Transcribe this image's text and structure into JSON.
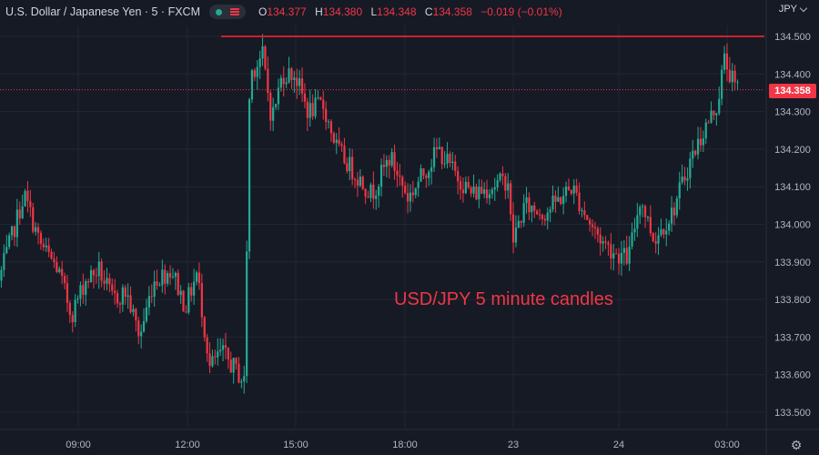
{
  "header": {
    "title": "U.S. Dollar / Japanese Yen · 5 · FXCM",
    "open_label": "O",
    "open": "134.377",
    "high_label": "H",
    "high": "134.380",
    "low_label": "L",
    "low": "134.348",
    "close_label": "C",
    "close": "134.358",
    "change": "−0.019 (−0.01%)",
    "currency": "JPY"
  },
  "annotation": "USD/JPY 5 minute candles",
  "last_price_label": "134.358",
  "colors": {
    "background": "#161a25",
    "up": "#22ab94",
    "down": "#f23645",
    "grid": "#232734",
    "resistance": "#d01f2a"
  },
  "chart_data": {
    "type": "candlestick",
    "title": "",
    "xlabel": "",
    "ylabel": "",
    "ylim": [
      133.48,
      134.545
    ],
    "y_ticks": [
      "134.500",
      "134.400",
      "134.300",
      "134.200",
      "134.100",
      "134.000",
      "133.900",
      "133.800",
      "133.700",
      "133.600",
      "133.500"
    ],
    "x_ticks": [
      "09:00",
      "12:00",
      "15:00",
      "18:00",
      "23",
      "24",
      "03:00"
    ],
    "grid": true,
    "resistance_level": 134.5,
    "last_price": 134.358,
    "series": [
      {
        "anchors": [
          {
            "pos": 0,
            "value": 133.85
          },
          {
            "pos": 10,
            "value": 133.93
          },
          {
            "pos": 28,
            "value": 134.08
          },
          {
            "pos": 45,
            "value": 133.95
          },
          {
            "pos": 65,
            "value": 133.88
          },
          {
            "pos": 80,
            "value": 133.76
          },
          {
            "pos": 95,
            "value": 133.85
          },
          {
            "pos": 110,
            "value": 133.88
          },
          {
            "pos": 125,
            "value": 133.8
          },
          {
            "pos": 140,
            "value": 133.82
          },
          {
            "pos": 155,
            "value": 133.7
          },
          {
            "pos": 170,
            "value": 133.85
          },
          {
            "pos": 190,
            "value": 133.88
          },
          {
            "pos": 205,
            "value": 133.78
          },
          {
            "pos": 218,
            "value": 133.87
          },
          {
            "pos": 232,
            "value": 133.62
          },
          {
            "pos": 245,
            "value": 133.66
          },
          {
            "pos": 258,
            "value": 133.62
          },
          {
            "pos": 270,
            "value": 133.58
          },
          {
            "pos": 276,
            "value": 134.4
          },
          {
            "pos": 290,
            "value": 134.45
          },
          {
            "pos": 300,
            "value": 134.28
          },
          {
            "pos": 312,
            "value": 134.4
          },
          {
            "pos": 325,
            "value": 134.4
          },
          {
            "pos": 340,
            "value": 134.3
          },
          {
            "pos": 356,
            "value": 134.32
          },
          {
            "pos": 372,
            "value": 134.2
          },
          {
            "pos": 390,
            "value": 134.14
          },
          {
            "pos": 410,
            "value": 134.08
          },
          {
            "pos": 430,
            "value": 134.18
          },
          {
            "pos": 450,
            "value": 134.07
          },
          {
            "pos": 468,
            "value": 134.14
          },
          {
            "pos": 483,
            "value": 134.2
          },
          {
            "pos": 500,
            "value": 134.14
          },
          {
            "pos": 520,
            "value": 134.08
          },
          {
            "pos": 540,
            "value": 134.1
          },
          {
            "pos": 560,
            "value": 134.12
          },
          {
            "pos": 564,
            "value": 133.95
          },
          {
            "pos": 578,
            "value": 134.05
          },
          {
            "pos": 600,
            "value": 134.03
          },
          {
            "pos": 630,
            "value": 134.1
          },
          {
            "pos": 650,
            "value": 134.0
          },
          {
            "pos": 665,
            "value": 133.95
          },
          {
            "pos": 680,
            "value": 133.92
          },
          {
            "pos": 692,
            "value": 133.91
          },
          {
            "pos": 705,
            "value": 134.07
          },
          {
            "pos": 720,
            "value": 133.96
          },
          {
            "pos": 740,
            "value": 134.03
          },
          {
            "pos": 760,
            "value": 134.17
          },
          {
            "pos": 775,
            "value": 134.25
          },
          {
            "pos": 790,
            "value": 134.32
          },
          {
            "pos": 797,
            "value": 134.44
          },
          {
            "pos": 810,
            "value": 134.36
          }
        ]
      }
    ]
  }
}
